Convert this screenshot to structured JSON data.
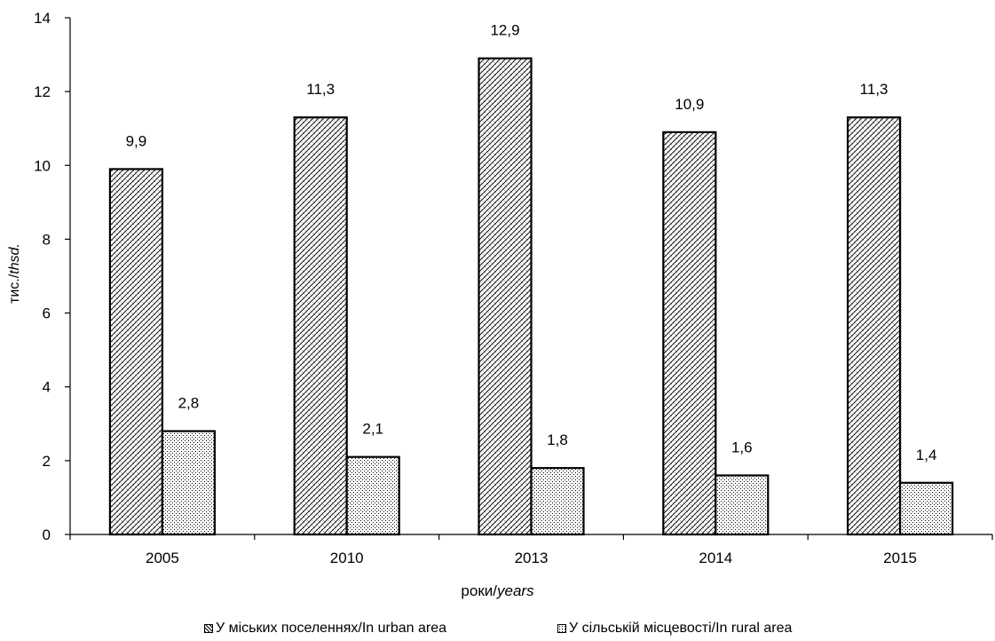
{
  "chart_data": {
    "type": "bar",
    "categories": [
      "2005",
      "2010",
      "2013",
      "2014",
      "2015"
    ],
    "series": [
      {
        "name": "У міських поселеннях/In urban area",
        "values": [
          9.9,
          11.3,
          12.9,
          10.9,
          11.3
        ],
        "labels": [
          "9,9",
          "11,3",
          "12,9",
          "10,9",
          "11,3"
        ]
      },
      {
        "name": "У сільській місцевості/In rural area",
        "values": [
          2.8,
          2.1,
          1.8,
          1.6,
          1.4
        ],
        "labels": [
          "2,8",
          "2,1",
          "1,8",
          "1,6",
          "1,4"
        ]
      }
    ],
    "ylabel_main": "тис./",
    "ylabel_italic": "thsd.",
    "xlabel_main": "роки/",
    "xlabel_italic": "years",
    "yticks": [
      "0",
      "2",
      "4",
      "6",
      "8",
      "10",
      "12",
      "14"
    ],
    "ylim": [
      0,
      14
    ],
    "grid": false,
    "legend_position": "bottom"
  }
}
